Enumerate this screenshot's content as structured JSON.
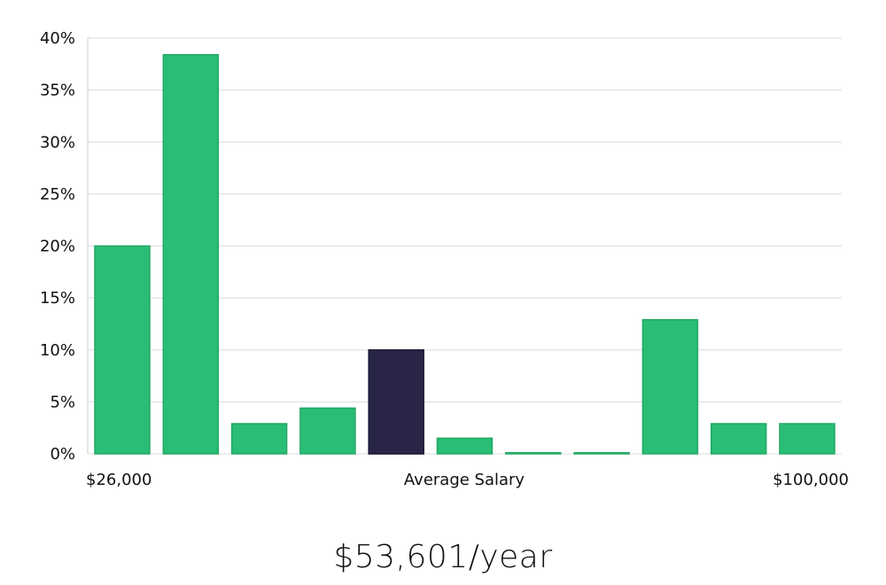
{
  "chart_data": {
    "type": "bar",
    "x_left_label": "$26,000",
    "x_center_label": "Average Salary",
    "x_right_label": "$100,000",
    "y_ticks": [
      "0%",
      "5%",
      "10%",
      "15%",
      "20%",
      "25%",
      "30%",
      "35%",
      "40%"
    ],
    "ylim": [
      0,
      40
    ],
    "grid": true,
    "values": [
      20,
      38.4,
      2.9,
      4.4,
      10,
      1.5,
      0.1,
      0.1,
      12.9,
      2.9,
      2.9
    ],
    "highlight_index": 4,
    "colors": {
      "bar": "#2abd75",
      "bar_stroke": "#22a865",
      "highlight": "#282546",
      "grid": "#dcdcdc",
      "axis": "#cfcfcf"
    }
  },
  "salary_caption": "$53,601/year"
}
